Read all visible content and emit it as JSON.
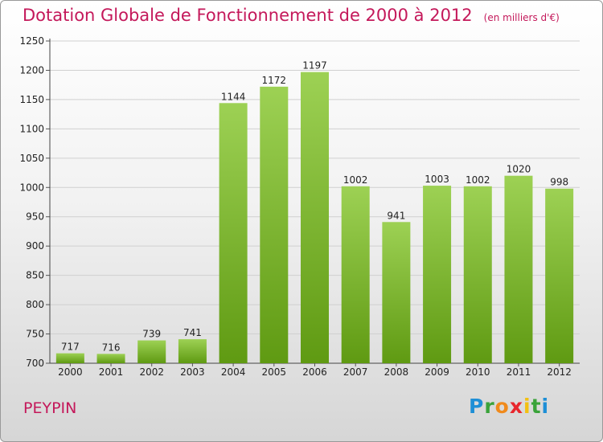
{
  "header": {
    "title": "Dotation Globale de Fonctionnement de 2000 à 2012",
    "subtitle": "(en milliers d'€)"
  },
  "footer": {
    "city": "PEYPIN",
    "logo_text": "Proxiti"
  },
  "colors": {
    "title": "#c4185a",
    "bar_top": "#9dd154",
    "bar_bottom": "#5f9a12",
    "grid": "#d0d0d0"
  },
  "chart_data": {
    "type": "bar",
    "categories": [
      "2000",
      "2001",
      "2002",
      "2003",
      "2004",
      "2005",
      "2006",
      "2007",
      "2008",
      "2009",
      "2010",
      "2011",
      "2012"
    ],
    "values": [
      717,
      716,
      739,
      741,
      1144,
      1172,
      1197,
      1002,
      941,
      1003,
      1002,
      1020,
      998
    ],
    "ylim": [
      700,
      1250
    ],
    "yticks": [
      700,
      750,
      800,
      850,
      900,
      950,
      1000,
      1050,
      1100,
      1150,
      1200,
      1250
    ],
    "grid": true,
    "title": "Dotation Globale de Fonctionnement de 2000 à 2012",
    "subtitle": "(en milliers d'€)",
    "xlabel": "",
    "ylabel": ""
  }
}
